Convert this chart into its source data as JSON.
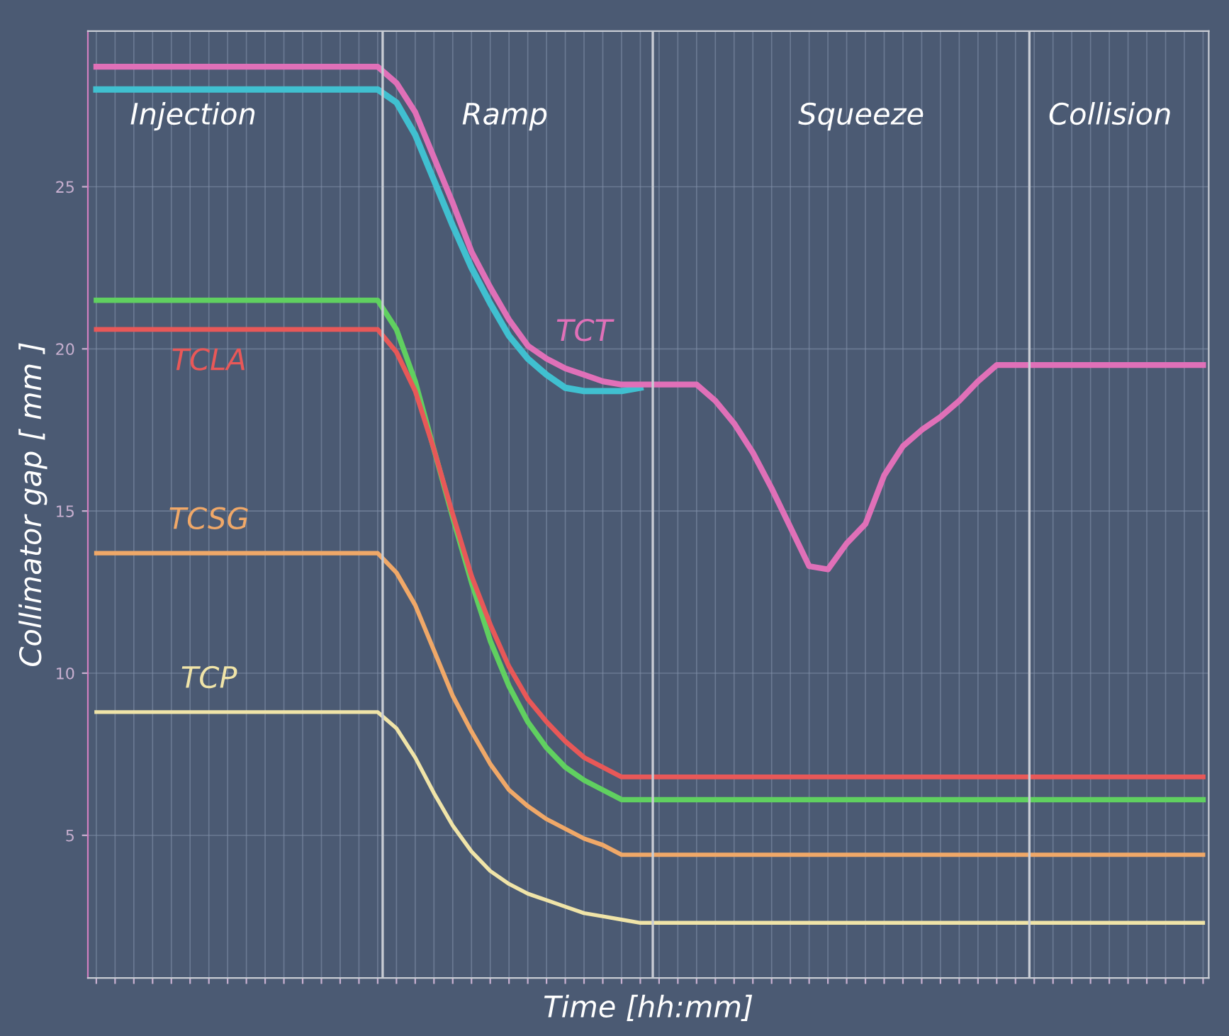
{
  "chart_data": {
    "type": "line",
    "xlabel": "Time [hh:mm]",
    "ylabel": "Collimator gap [ mm ]",
    "categories": [
      null,
      null,
      null,
      null,
      null,
      null,
      null,
      null,
      null,
      null,
      null,
      null,
      null,
      null,
      null,
      null,
      null,
      null,
      null,
      null,
      null,
      null,
      null,
      null,
      null,
      null,
      null,
      null,
      null,
      null,
      null,
      null,
      null,
      null,
      null,
      null,
      null,
      null,
      null,
      null,
      null,
      null,
      null,
      null,
      null,
      null,
      null,
      null,
      null,
      null,
      null,
      null,
      null,
      null,
      null,
      null,
      null,
      null,
      null,
      null
    ],
    "ylim": [
      0.6,
      29.8
    ],
    "yticks": [
      5,
      10,
      15,
      20,
      25
    ],
    "grid": true,
    "line_style": "solid",
    "series": [
      {
        "color": "#40c0d0",
        "values": [
          28.0,
          28.0,
          28.0,
          28.0,
          28.0,
          28.0,
          28.0,
          28.0,
          28.0,
          28.0,
          28.0,
          28.0,
          28.0,
          28.0,
          28.0,
          28.0,
          27.6,
          26.6,
          25.2,
          23.8,
          22.5,
          21.4,
          20.4,
          19.7,
          19.2,
          18.8,
          18.7,
          18.7,
          18.7,
          18.8,
          null,
          null,
          null,
          null,
          null,
          null,
          null,
          null,
          null,
          null,
          null,
          null,
          null,
          null,
          null,
          null,
          null,
          null,
          null,
          null,
          null,
          null,
          null,
          null,
          null,
          null,
          null,
          null,
          null,
          null
        ]
      },
      {
        "name": "TCT",
        "color": "#e070b8",
        "values": [
          28.7,
          28.7,
          28.7,
          28.7,
          28.7,
          28.7,
          28.7,
          28.7,
          28.7,
          28.7,
          28.7,
          28.7,
          28.7,
          28.7,
          28.7,
          28.7,
          28.2,
          27.3,
          25.9,
          24.5,
          23.0,
          21.9,
          20.9,
          20.1,
          19.7,
          19.4,
          19.2,
          19.0,
          18.9,
          18.9,
          18.9,
          18.9,
          18.9,
          18.4,
          17.7,
          16.8,
          15.7,
          14.5,
          13.3,
          13.2,
          14.0,
          14.6,
          16.1,
          17.0,
          17.5,
          17.9,
          18.4,
          19.0,
          19.5,
          19.5,
          19.5,
          19.5,
          19.5,
          19.5,
          19.5,
          19.5,
          19.5,
          19.5,
          19.5,
          19.5
        ]
      },
      {
        "color": "#60d060",
        "values": [
          21.5,
          21.5,
          21.5,
          21.5,
          21.5,
          21.5,
          21.5,
          21.5,
          21.5,
          21.5,
          21.5,
          21.5,
          21.5,
          21.5,
          21.5,
          21.5,
          20.6,
          19.0,
          16.9,
          14.8,
          12.8,
          11.0,
          9.6,
          8.5,
          7.7,
          7.1,
          6.7,
          6.4,
          6.1,
          6.1,
          6.1,
          6.1,
          6.1,
          6.1,
          6.1,
          6.1,
          6.1,
          6.1,
          6.1,
          6.1,
          6.1,
          6.1,
          6.1,
          6.1,
          6.1,
          6.1,
          6.1,
          6.1,
          6.1,
          6.1,
          6.1,
          6.1,
          6.1,
          6.1,
          6.1,
          6.1,
          6.1,
          6.1,
          6.1,
          6.1
        ]
      },
      {
        "name": "TCLA",
        "color": "#e85858",
        "values": [
          20.6,
          20.6,
          20.6,
          20.6,
          20.6,
          20.6,
          20.6,
          20.6,
          20.6,
          20.6,
          20.6,
          20.6,
          20.6,
          20.6,
          20.6,
          20.6,
          19.9,
          18.7,
          16.9,
          14.9,
          13.0,
          11.5,
          10.2,
          9.2,
          8.5,
          7.9,
          7.4,
          7.1,
          6.8,
          6.8,
          6.8,
          6.8,
          6.8,
          6.8,
          6.8,
          6.8,
          6.8,
          6.8,
          6.8,
          6.8,
          6.8,
          6.8,
          6.8,
          6.8,
          6.8,
          6.8,
          6.8,
          6.8,
          6.8,
          6.8,
          6.8,
          6.8,
          6.8,
          6.8,
          6.8,
          6.8,
          6.8,
          6.8,
          6.8,
          6.8
        ]
      },
      {
        "name": "TCSG",
        "color": "#f0a868",
        "values": [
          13.7,
          13.7,
          13.7,
          13.7,
          13.7,
          13.7,
          13.7,
          13.7,
          13.7,
          13.7,
          13.7,
          13.7,
          13.7,
          13.7,
          13.7,
          13.7,
          13.1,
          12.1,
          10.7,
          9.3,
          8.2,
          7.2,
          6.4,
          5.9,
          5.5,
          5.2,
          4.9,
          4.7,
          4.4,
          4.4,
          4.4,
          4.4,
          4.4,
          4.4,
          4.4,
          4.4,
          4.4,
          4.4,
          4.4,
          4.4,
          4.4,
          4.4,
          4.4,
          4.4,
          4.4,
          4.4,
          4.4,
          4.4,
          4.4,
          4.4,
          4.4,
          4.4,
          4.4,
          4.4,
          4.4,
          4.4,
          4.4,
          4.4,
          4.4,
          4.4
        ]
      },
      {
        "name": "TCP",
        "color": "#f0e4a8",
        "values": [
          8.8,
          8.8,
          8.8,
          8.8,
          8.8,
          8.8,
          8.8,
          8.8,
          8.8,
          8.8,
          8.8,
          8.8,
          8.8,
          8.8,
          8.8,
          8.8,
          8.3,
          7.4,
          6.3,
          5.3,
          4.5,
          3.9,
          3.5,
          3.2,
          3.0,
          2.8,
          2.6,
          2.5,
          2.4,
          2.3,
          2.3,
          2.3,
          2.3,
          2.3,
          2.3,
          2.3,
          2.3,
          2.3,
          2.3,
          2.3,
          2.3,
          2.3,
          2.3,
          2.3,
          2.3,
          2.3,
          2.3,
          2.3,
          2.3,
          2.3,
          2.3,
          2.3,
          2.3,
          2.3,
          2.3,
          2.3,
          2.3,
          2.3,
          2.3,
          2.3
        ]
      }
    ],
    "annotations": [
      "Injection",
      "Ramp",
      "Squeeze",
      "Collision"
    ]
  }
}
